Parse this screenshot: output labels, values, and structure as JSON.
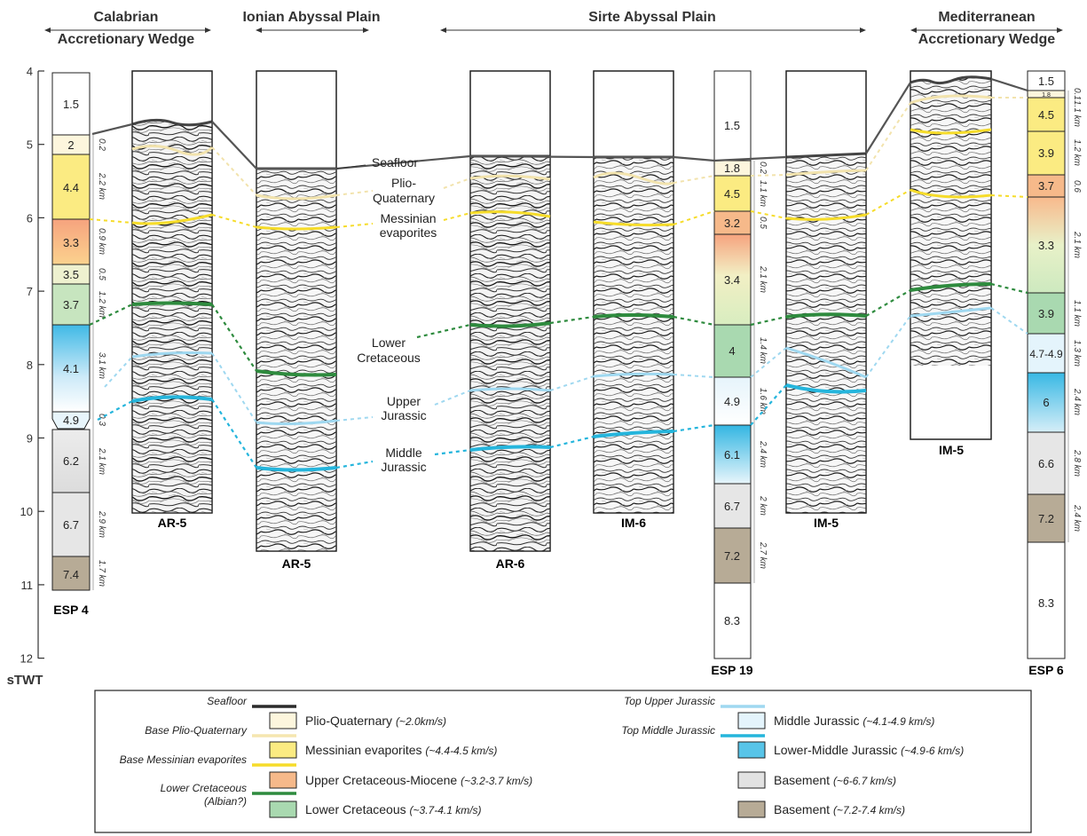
{
  "headers": {
    "calabrian": [
      "Calabrian",
      "Accretionary Wedge"
    ],
    "ionian": "Ionian Abyssal Plain",
    "sirte": "Sirte Abyssal Plain",
    "mediterranean": [
      "Mediterranean",
      "Accretionary Wedge"
    ]
  },
  "axis": {
    "label": "sTWT",
    "ticks": [
      "4",
      "5",
      "6",
      "7",
      "8",
      "9",
      "10",
      "11",
      "12"
    ]
  },
  "columns": {
    "esp4": {
      "name": "ESP 4",
      "layers": [
        {
          "v": "1.5",
          "t": ""
        },
        {
          "v": "2",
          "t": "0.2"
        },
        {
          "v": "4.4",
          "t": "2.2 km"
        },
        {
          "v": "3.3",
          "t": "0.9 km"
        },
        {
          "v": "3.5",
          "t": "0.5"
        },
        {
          "v": "3.7",
          "t": "1.2 km"
        },
        {
          "v": "4.1",
          "t": "3.1 km"
        },
        {
          "v": "4.9",
          "t": "0.3"
        },
        {
          "v": "6.2",
          "t": "2.1 km"
        },
        {
          "v": "6.7",
          "t": "2.9 km"
        },
        {
          "v": "7.4",
          "t": "1.7 km"
        }
      ]
    },
    "esp19": {
      "name": "ESP 19",
      "layers": [
        {
          "v": "1.5",
          "t": ""
        },
        {
          "v": "1.8",
          "t": "0.2"
        },
        {
          "v": "4.5",
          "t": "1.1 km"
        },
        {
          "v": "3.2",
          "t": "0.5"
        },
        {
          "v": "3.4",
          "t": "2.1 km"
        },
        {
          "v": "4",
          "t": "1.4 km"
        },
        {
          "v": "4.9",
          "t": "1.6 km"
        },
        {
          "v": "6.1",
          "t": "2.4 km"
        },
        {
          "v": "6.7",
          "t": "2 km"
        },
        {
          "v": "7.2",
          "t": "2.7 km"
        },
        {
          "v": "8.3",
          "t": ""
        }
      ]
    },
    "esp6": {
      "name": "ESP 6",
      "layers": [
        {
          "v": "1.5",
          "t": "0.1"
        },
        {
          "v": "1.8",
          "t": "1.1 km"
        },
        {
          "v": "4.5",
          "t": ""
        },
        {
          "v": "3.9",
          "t": "1.2 km"
        },
        {
          "v": "3.7",
          "t": "0.6"
        },
        {
          "v": "3.3",
          "t": "2.1 km"
        },
        {
          "v": "3.9",
          "t": "1.1 km"
        },
        {
          "v": "4.7-4.9",
          "t": "1.3 km"
        },
        {
          "v": "6",
          "t": "2.4 km"
        },
        {
          "v": "6.6",
          "t": "2.8 km"
        },
        {
          "v": "7.2",
          "t": "2.4 km"
        },
        {
          "v": "8.3",
          "t": ""
        }
      ]
    }
  },
  "seismic_labels": [
    "AR-5",
    "AR-5",
    "AR-6",
    "IM-6",
    "IM-5",
    "IM-5"
  ],
  "horizon_labels": {
    "seafloor": "Seafloor",
    "plio": [
      "Plio-",
      "Quaternary"
    ],
    "messinian": [
      "Messinian",
      "evaporites"
    ],
    "lower_cret": [
      "Lower",
      "Cretaceous"
    ],
    "upper_jur": [
      "Upper",
      "Jurassic"
    ],
    "middle_jur": [
      "Middle",
      "Jurassic"
    ]
  },
  "legend": {
    "lines": [
      {
        "label": "Seafloor",
        "color": "#2b2b2b"
      },
      {
        "label": "Base Plio-Quaternary",
        "color": "#f5e6b0"
      },
      {
        "label": "Base Messinian evaporites",
        "color": "#f6dc2a"
      },
      {
        "label": "Lower Cretaceous",
        "label2": "(Albian?)",
        "color": "#2e8b3e"
      },
      {
        "label": "Top Upper Jurassic",
        "color": "#9fd8f0"
      },
      {
        "label": "Top Middle Jurassic",
        "color": "#25b5dc"
      }
    ],
    "boxes": [
      {
        "name": "Plio-Quaternary",
        "speed": "(~2.0km/s)",
        "fill": "#fdf6dd"
      },
      {
        "name": "Messinian evaporites",
        "speed": "(~4.4-4.5 km/s)",
        "fill": "#fbeb82"
      },
      {
        "name": "Upper Cretaceous-Miocene",
        "speed": "(~3.2-3.7 km/s)",
        "fill": "#f6b98a"
      },
      {
        "name": "Lower Cretaceous",
        "speed": "(~3.7-4.1 km/s)",
        "fill": "#a9d9b0"
      },
      {
        "name": "Middle Jurassic",
        "speed": "(~4.1-4.9 km/s)",
        "fill": "#e4f4fc"
      },
      {
        "name": "Lower-Middle Jurassic",
        "speed": "(~4.9-6 km/s)",
        "fill": "#58c4e8"
      },
      {
        "name": "Basement",
        "speed": "(~6-6.7 km/s)",
        "fill": "#e2e2e2"
      },
      {
        "name": "Basement",
        "speed": "(~7.2-7.4 km/s)",
        "fill": "#b7ab96"
      }
    ]
  }
}
